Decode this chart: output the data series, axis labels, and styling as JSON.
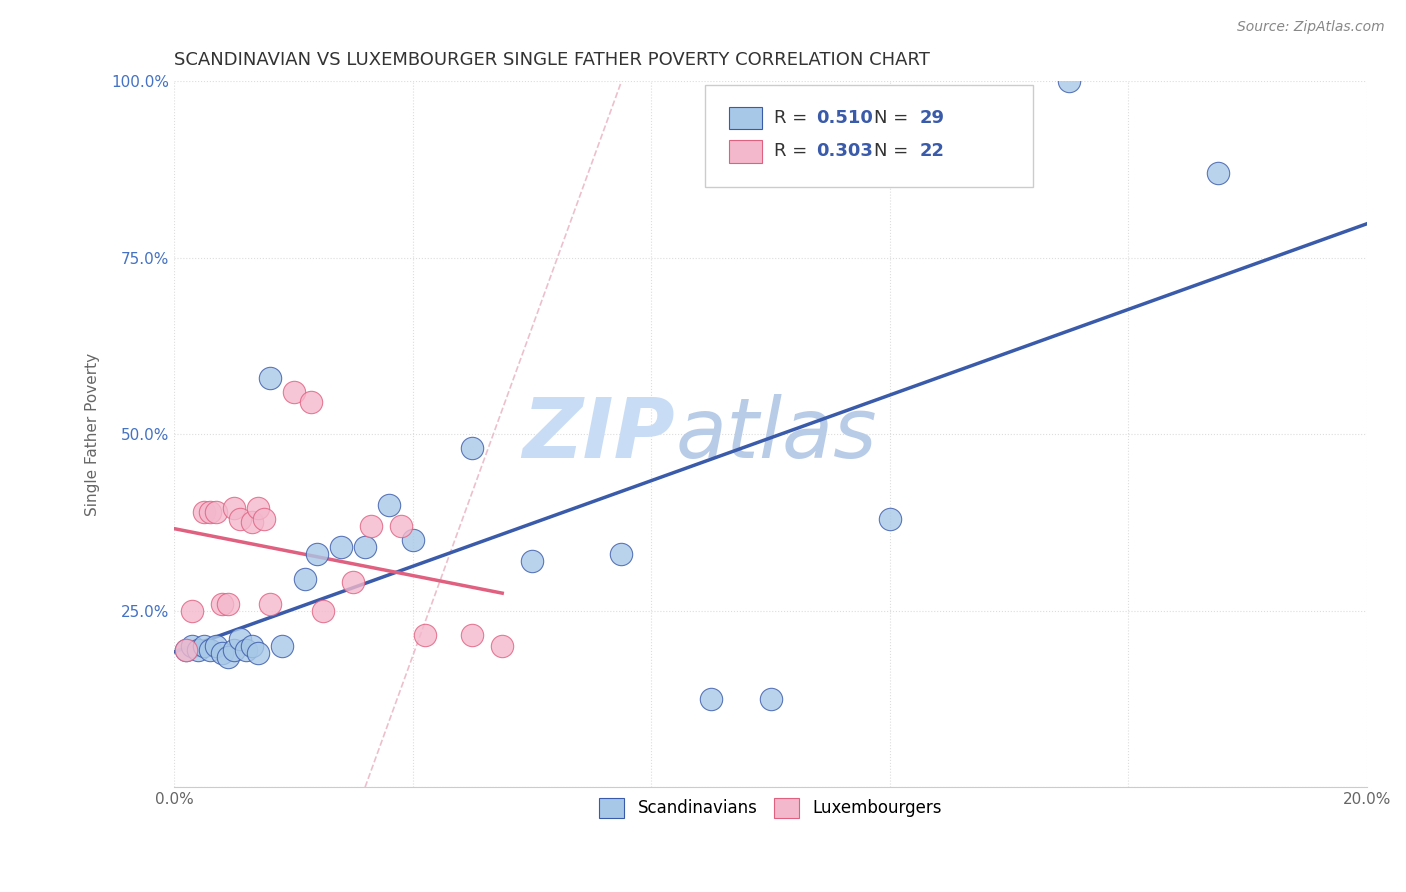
{
  "title": "SCANDINAVIAN VS LUXEMBOURGER SINGLE FATHER POVERTY CORRELATION CHART",
  "source": "Source: ZipAtlas.com",
  "ylabel": "Single Father Poverty",
  "x_min": 0.0,
  "x_max": 0.2,
  "y_min": 0.0,
  "y_max": 1.0,
  "x_ticks": [
    0.0,
    0.04,
    0.08,
    0.12,
    0.16,
    0.2
  ],
  "x_tick_labels": [
    "0.0%",
    "",
    "",
    "",
    "",
    "20.0%"
  ],
  "y_ticks": [
    0.0,
    0.25,
    0.5,
    0.75,
    1.0
  ],
  "y_tick_labels": [
    "",
    "25.0%",
    "50.0%",
    "75.0%",
    "100.0%"
  ],
  "scandinavians_x": [
    0.002,
    0.003,
    0.004,
    0.005,
    0.006,
    0.007,
    0.008,
    0.009,
    0.01,
    0.011,
    0.012,
    0.013,
    0.014,
    0.016,
    0.018,
    0.022,
    0.024,
    0.028,
    0.032,
    0.036,
    0.04,
    0.05,
    0.06,
    0.075,
    0.09,
    0.1,
    0.12,
    0.15,
    0.175
  ],
  "scandinavians_y": [
    0.195,
    0.2,
    0.195,
    0.2,
    0.195,
    0.2,
    0.19,
    0.185,
    0.195,
    0.21,
    0.195,
    0.2,
    0.19,
    0.58,
    0.2,
    0.295,
    0.33,
    0.34,
    0.34,
    0.4,
    0.35,
    0.48,
    0.32,
    0.33,
    0.125,
    0.125,
    0.38,
    1.0,
    0.87
  ],
  "luxembourgers_x": [
    0.002,
    0.003,
    0.005,
    0.006,
    0.007,
    0.008,
    0.009,
    0.01,
    0.011,
    0.013,
    0.014,
    0.015,
    0.016,
    0.02,
    0.023,
    0.025,
    0.03,
    0.033,
    0.038,
    0.042,
    0.05,
    0.055
  ],
  "luxembourgers_y": [
    0.195,
    0.25,
    0.39,
    0.39,
    0.39,
    0.26,
    0.26,
    0.395,
    0.38,
    0.375,
    0.395,
    0.38,
    0.26,
    0.56,
    0.545,
    0.25,
    0.29,
    0.37,
    0.37,
    0.215,
    0.215,
    0.2
  ],
  "R_scandinavians": 0.51,
  "N_scandinavians": 29,
  "R_luxembourgers": 0.303,
  "N_luxembourgers": 22,
  "color_scandinavians": "#a8c8e8",
  "color_luxembourgers": "#f4b8cc",
  "trendline_scand_color": "#3a5aaa",
  "trendline_luxem_color": "#e06080",
  "trendline_diagonal_color": "#e8b0c0",
  "background_color": "#ffffff",
  "grid_color": "#dddddd",
  "watermark_color": "#ddeeff"
}
